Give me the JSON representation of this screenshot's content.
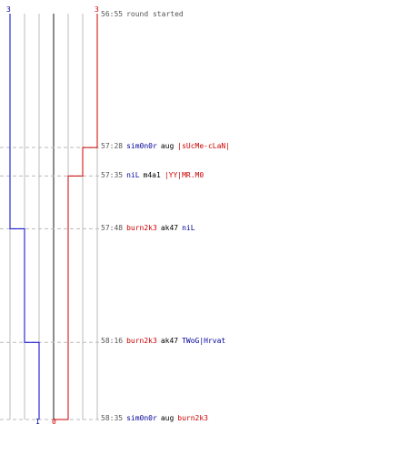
{
  "timeline": {
    "start": {
      "time": "56:55",
      "note": "round started"
    },
    "team_counts": {
      "blue_start": "3",
      "red_start": "3",
      "blue_end": "1",
      "red_end": "0"
    },
    "events": [
      {
        "time": "57:28",
        "killer": "sim0n0r",
        "weapon": "aug",
        "victim": "|sUcMe-cLaN|",
        "killer_team": "blue",
        "victim_team": "red"
      },
      {
        "time": "57:35",
        "killer": "niL",
        "weapon": "m4a1",
        "victim": "|YY|MR.M0",
        "killer_team": "blue",
        "victim_team": "red"
      },
      {
        "time": "57:48",
        "killer": "burn2k3",
        "weapon": "ak47",
        "victim": "niL",
        "killer_team": "red",
        "victim_team": "blue"
      },
      {
        "time": "58:16",
        "killer": "burn2k3",
        "weapon": "ak47",
        "victim": "TWoG|Hrvat",
        "killer_team": "red",
        "victim_team": "blue"
      },
      {
        "time": "58:35",
        "killer": "sim0n0r",
        "weapon": "aug",
        "victim": "burn2k3",
        "killer_team": "blue",
        "victim_team": "red"
      }
    ],
    "colors": {
      "blue": "#0000cc",
      "red": "#cc0000",
      "grid": "#bbbbbb",
      "center": "#666666",
      "dash": "#bbbbbb"
    }
  }
}
